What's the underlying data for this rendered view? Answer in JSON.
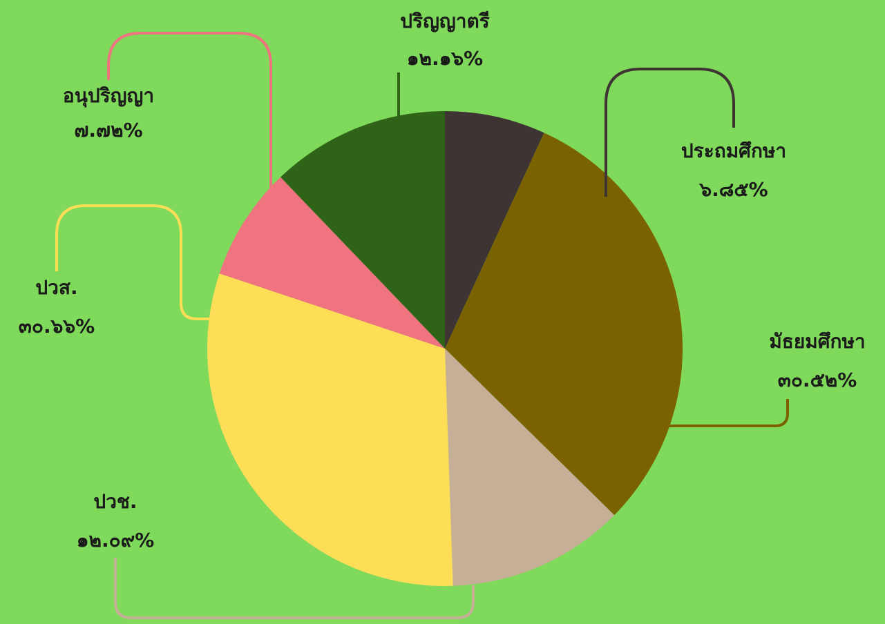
{
  "chart_data": {
    "type": "pie",
    "categories": [
      "ประถมศึกษา",
      "มัธยมศึกษา",
      "ปวช.",
      "ปวส.",
      "อนุปริญญา",
      "ปริญญาตรี"
    ],
    "values": [
      6.85,
      30.52,
      12.09,
      30.66,
      7.72,
      12.16
    ],
    "value_labels": [
      "๖.๘๕%",
      "๓๐.๕๒%",
      "๑๒.๐๙%",
      "๓๐.๖๖%",
      "๗.๗๒%",
      "๑๒.๑๖%"
    ],
    "colors": [
      "#3e3434",
      "#7a6200",
      "#c6af96",
      "#fedd57",
      "#f07480",
      "#2f6418"
    ]
  }
}
